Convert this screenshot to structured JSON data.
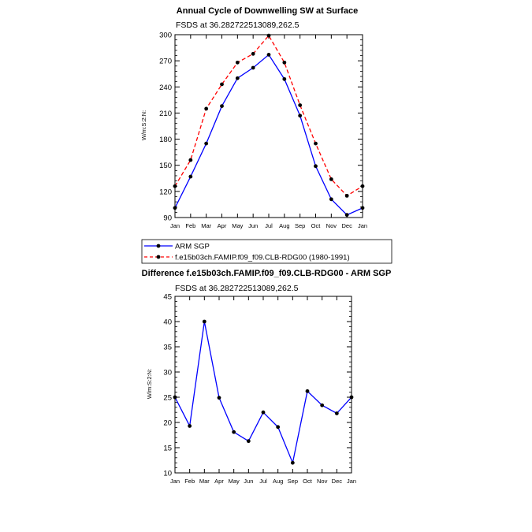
{
  "chart_data": [
    {
      "type": "line",
      "title": "Annual Cycle of Downwelling SW at Surface",
      "subtitle": "FSDS at 36.282722513089,262.5",
      "ylabel": "W/m:S:2:N:",
      "xlabel": "",
      "ylim": [
        90,
        300
      ],
      "yticks": [
        90,
        120,
        150,
        180,
        210,
        240,
        270,
        300
      ],
      "categories": [
        "Jan",
        "Feb",
        "Mar",
        "Apr",
        "May",
        "Jun",
        "Jul",
        "Aug",
        "Sep",
        "Oct",
        "Nov",
        "Dec",
        "Jan"
      ],
      "series": [
        {
          "name": "ARM SGP",
          "color": "#0000ff",
          "style": "solid",
          "values": [
            101,
            137,
            175,
            218,
            250,
            262,
            277,
            249,
            207,
            149,
            111,
            93,
            101
          ]
        },
        {
          "name": "f.e15b03ch.FAMIP.f09_f09.CLB-RDG00 (1980-1991)",
          "color": "#ff0000",
          "style": "dashed",
          "values": [
            126,
            156,
            215,
            243,
            268,
            278,
            299,
            268,
            219,
            175,
            134,
            115,
            126
          ]
        }
      ],
      "legend": "below"
    },
    {
      "type": "line",
      "title": "Difference f.e15b03ch.FAMIP.f09_f09.CLB-RDG00 - ARM SGP",
      "subtitle": "FSDS at 36.282722513089,262.5",
      "ylabel": "W/m:S:2:N:",
      "xlabel": "",
      "ylim": [
        10,
        45
      ],
      "yticks": [
        10,
        15,
        20,
        25,
        30,
        35,
        40,
        45
      ],
      "categories": [
        "Jan",
        "Feb",
        "Mar",
        "Apr",
        "May",
        "Jun",
        "Jul",
        "Aug",
        "Sep",
        "Oct",
        "Nov",
        "Dec",
        "Jan"
      ],
      "series": [
        {
          "color": "#0000ff",
          "style": "solid",
          "values": [
            25,
            19.3,
            40,
            24.9,
            18.1,
            16.3,
            22,
            19.1,
            12,
            26.2,
            23.4,
            21.8,
            25
          ]
        }
      ]
    }
  ]
}
